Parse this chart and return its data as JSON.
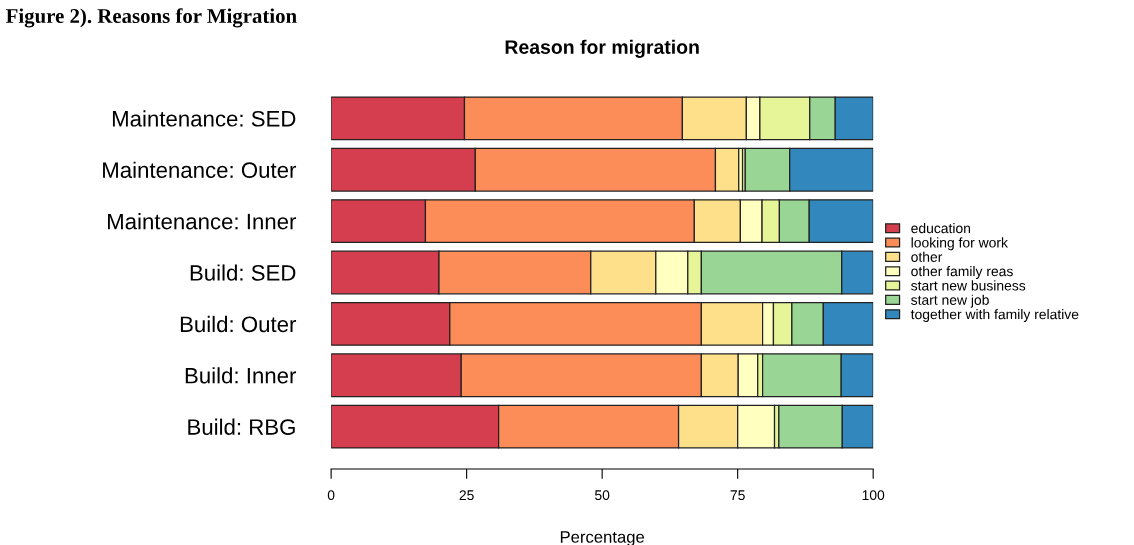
{
  "chart_data": {
    "type": "bar",
    "orientation": "horizontal",
    "stacked": true,
    "title": "Reason for migration",
    "xlabel": "Percentage",
    "annotations": [
      "Figure 2). Reasons for Migration"
    ],
    "categories": [
      "Maintenance: SED",
      "Maintenance: Outer",
      "Maintenance: Inner",
      "Build: SED",
      "Build: Outer",
      "Build: Inner",
      "Build: RBG"
    ],
    "series": [
      {
        "name": "education",
        "color": "#d53e4f",
        "values": [
          24.6,
          26.6,
          17.4,
          19.9,
          21.9,
          24.0,
          30.9
        ]
      },
      {
        "name": "looking for work",
        "color": "#fc8d59",
        "values": [
          40.2,
          44.3,
          49.6,
          28.0,
          46.4,
          44.3,
          33.2
        ]
      },
      {
        "name": "other",
        "color": "#fee08b",
        "values": [
          11.8,
          4.3,
          8.5,
          12.0,
          11.3,
          6.8,
          10.9
        ]
      },
      {
        "name": "other family reas",
        "color": "#ffffbf",
        "values": [
          2.5,
          0.7,
          4.0,
          5.9,
          2.0,
          3.6,
          6.8
        ]
      },
      {
        "name": "start new business",
        "color": "#e6f598",
        "values": [
          9.2,
          0.5,
          3.2,
          2.5,
          3.4,
          0.9,
          0.8
        ]
      },
      {
        "name": "start new job",
        "color": "#99d594",
        "values": [
          4.7,
          8.2,
          5.5,
          25.9,
          5.8,
          14.5,
          11.7
        ]
      },
      {
        "name": "together with family relative",
        "color": "#3288bd",
        "values": [
          7.0,
          15.4,
          11.8,
          5.8,
          9.2,
          5.9,
          5.7
        ]
      }
    ],
    "xlim": [
      0,
      100
    ],
    "xticks": [
      0,
      25,
      50,
      75,
      100
    ],
    "grid": false,
    "legend": "right"
  }
}
